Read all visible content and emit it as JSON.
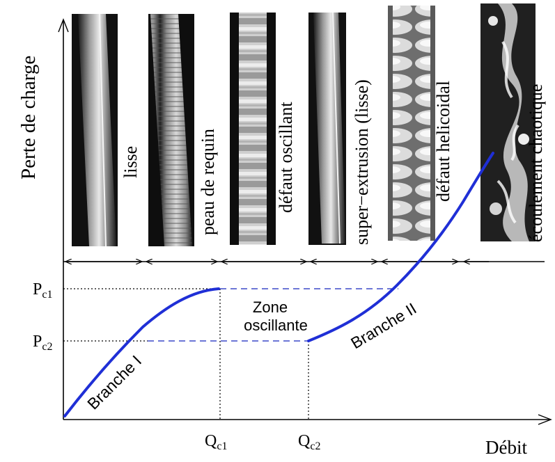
{
  "axes": {
    "y_label": "Perte de charge",
    "x_label": "Débit"
  },
  "regimes": [
    {
      "label": "lisse",
      "image": "smooth-extrudate-photo"
    },
    {
      "label": "peau de requin",
      "image": "sharkskin-extrudate-photo"
    },
    {
      "label": "défaut oscillant",
      "image": "oscillating-defect-photo"
    },
    {
      "label": "super−extrusion (lisse)",
      "image": "super-extrusion-photo"
    },
    {
      "label": "défaut helicoidal",
      "image": "helical-defect-photo"
    },
    {
      "label": "écoulement chaotique",
      "image": "chaotic-flow-photo"
    }
  ],
  "pressure_marks": [
    {
      "base": "P",
      "sub": "c1"
    },
    {
      "base": "P",
      "sub": "c2"
    }
  ],
  "flow_marks": [
    {
      "base": "Q",
      "sub": "c1"
    },
    {
      "base": "Q",
      "sub": "c2"
    }
  ],
  "curve_labels": {
    "branch_1": "Branche I",
    "branch_2": "Branche II",
    "zone_line_1": "Zone",
    "zone_line_2": "oscillante"
  },
  "colors": {
    "curve": "#1f2fd6",
    "axis": "#000000",
    "dashed_link": "#3b49c8"
  }
}
